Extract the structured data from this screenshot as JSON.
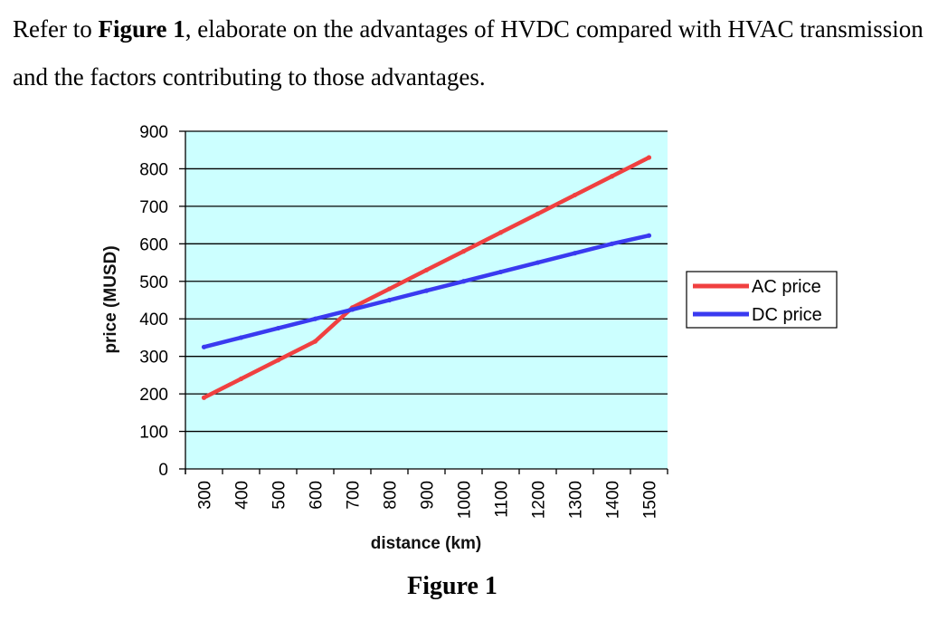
{
  "question": {
    "prefix": "Refer to ",
    "figure_ref": "Figure 1",
    "suffix": ", elaborate on the advantages of HVDC compared with HVAC transmission and the factors contributing to those advantages."
  },
  "figure_caption": "Figure 1",
  "chart_data": {
    "type": "line",
    "title": "",
    "xlabel": "distance (km)",
    "ylabel": "price (MUSD)",
    "x": [
      300,
      400,
      500,
      600,
      700,
      800,
      900,
      1000,
      1100,
      1200,
      1300,
      1400,
      1500
    ],
    "x_tick_labels": [
      "300",
      "400",
      "500",
      "600",
      "700",
      "800",
      "900",
      "1000",
      "1100",
      "1200",
      "1300",
      "1400",
      "1500"
    ],
    "ylim": [
      0,
      900
    ],
    "y_ticks": [
      0,
      100,
      200,
      300,
      400,
      500,
      600,
      700,
      800,
      900
    ],
    "y_tick_labels": [
      "0",
      "100",
      "200",
      "300",
      "400",
      "500",
      "600",
      "700",
      "800",
      "900"
    ],
    "grid": true,
    "background_color": "#ccffff",
    "legend_position": "right",
    "series": [
      {
        "name": "AC price",
        "color": "#f04040",
        "values": [
          190,
          240,
          290,
          340,
          430,
          480,
          530,
          580,
          630,
          680,
          730,
          780,
          830
        ]
      },
      {
        "name": "DC price",
        "color": "#3a3af0",
        "values": [
          325,
          350,
          375,
          400,
          425,
          450,
          475,
          500,
          525,
          550,
          575,
          600,
          622
        ]
      }
    ]
  }
}
